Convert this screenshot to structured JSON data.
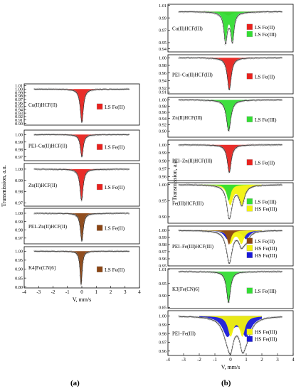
{
  "figure": {
    "caption_a": "(a)",
    "caption_b": "(b)",
    "colors": {
      "ls_fe2": "#e8221e",
      "ls_fe2_dark": "#8b4513",
      "ls_fe3": "#33dd33",
      "hs_fe3": "#f2f20c",
      "hs_fe3_blue": "#1a1ad8",
      "spectrum_points": "#8c8c8c"
    }
  },
  "chart_data": [
    {
      "panel": "(a)",
      "type": "scatter",
      "xlabel": "V, mm/s",
      "ylabel": "Transmission, a.u.",
      "xlim": [
        -4,
        4
      ],
      "x_ticks": [
        "-4",
        "-3",
        "-2",
        "-1",
        "0",
        "1",
        "2",
        "3",
        "4"
      ],
      "grid": false,
      "subplots": [
        {
          "sample": "Cu(II)HCF(II)",
          "ylim": [
            0.895,
            1.015
          ],
          "yticks": [
            "1.01",
            "1.00",
            "0.99",
            "0.98",
            "0.97",
            "0.96",
            "0.95",
            "0.94",
            "0.93",
            "0.92",
            "0.91",
            "0.90"
          ],
          "legend": [
            {
              "label": "LS Fe(II)",
              "color": "#e8221e"
            }
          ],
          "components": [
            {
              "type": "singlet",
              "center": 0.0,
              "width": 0.26,
              "depth": 0.098,
              "color": "#e8221e"
            }
          ]
        },
        {
          "sample": "PEI–Cu(II)HCF(II)",
          "ylim": [
            0.965,
            1.006
          ],
          "yticks": [
            "1.00",
            "0.99",
            "0.98",
            "0.97"
          ],
          "legend": [
            {
              "label": "LS Fe(II)",
              "color": "#e8221e"
            }
          ],
          "components": [
            {
              "type": "singlet",
              "center": 0.0,
              "width": 0.24,
              "depth": 0.03,
              "color": "#e8221e"
            }
          ]
        },
        {
          "sample": "Zn(II)HCF(II)",
          "ylim": [
            0.967,
            1.005
          ],
          "yticks": [
            "1.00",
            "0.99",
            "0.98",
            "0.97"
          ],
          "legend": [
            {
              "label": "LS Fe(II)",
              "color": "#e8221e"
            }
          ],
          "components": [
            {
              "type": "singlet",
              "center": -0.02,
              "width": 0.26,
              "depth": 0.028,
              "color": "#e8221e"
            }
          ]
        },
        {
          "sample": "PEI–Zn(II)HCF(II)",
          "ylim": [
            0.963,
            1.006
          ],
          "yticks": [
            "1.00",
            "0.99",
            "0.98",
            "0.97"
          ],
          "legend": [
            {
              "label": "LS Fe(II)",
              "color": "#8b4513"
            }
          ],
          "components": [
            {
              "type": "singlet",
              "center": 0.0,
              "width": 0.24,
              "depth": 0.034,
              "color": "#8b4513"
            }
          ]
        },
        {
          "sample": "K4[Fe(CN)6]",
          "ylim": [
            0.795,
            1.025
          ],
          "yticks": [
            "1.00",
            "0.95",
            "0.90",
            "0.85",
            "0.80"
          ],
          "legend": [
            {
              "label": "LS Fe(II)",
              "color": "#8b4513"
            }
          ],
          "components": [
            {
              "type": "singlet",
              "center": -0.05,
              "width": 0.18,
              "depth": 0.19,
              "color": "#8b4513"
            }
          ]
        }
      ]
    },
    {
      "panel": "(b)",
      "type": "scatter",
      "xlabel": "V, mm/s",
      "ylabel": "Transmission, a.u.",
      "xlim": [
        -4,
        4
      ],
      "x_ticks": [
        "-4",
        "-3",
        "-2",
        "-1",
        "0",
        "1",
        "2",
        "3",
        "4"
      ],
      "grid": false,
      "subplots": [
        {
          "sample": "Cu(II)HCF(III)",
          "ylim": [
            0.935,
            1.012
          ],
          "yticks": [
            "1.01",
            "0.99",
            "0.97",
            "0.95",
            "0.94"
          ],
          "legend": [
            {
              "label": "LS Fe(II)",
              "color": "#e8221e"
            },
            {
              "label": "LS Fe(III)",
              "color": "#33dd33"
            }
          ],
          "components": [
            {
              "type": "singlet",
              "center": -0.15,
              "width": 0.6,
              "depth": 0.006,
              "color": "#e8221e"
            },
            {
              "type": "doublet",
              "center": -0.1,
              "split": 0.44,
              "width": 0.24,
              "depth": 0.045,
              "color": "#33dd33"
            }
          ]
        },
        {
          "sample": "PEI–Cu(II)HCF(III)",
          "ylim": [
            0.905,
            1.008
          ],
          "yticks": [
            "1.00",
            "0.98",
            "0.96",
            "0.94",
            "0.92",
            "0.91"
          ],
          "legend": [
            {
              "label": "LS Fe(II)",
              "color": "#e8221e"
            }
          ],
          "components": [
            {
              "type": "singlet",
              "center": -0.08,
              "width": 0.3,
              "depth": 0.085,
              "color": "#e8221e"
            }
          ]
        },
        {
          "sample": "Zn(II)HCF(III)",
          "ylim": [
            0.88,
            1.008
          ],
          "yticks": [
            "1.00",
            "0.98",
            "0.96",
            "0.94",
            "0.92",
            "0.90"
          ],
          "legend": [
            {
              "label": "LS Fe(III)",
              "color": "#33dd33"
            }
          ],
          "components": [
            {
              "type": "singlet",
              "center": -0.12,
              "width": 0.34,
              "depth": 0.1,
              "color": "#33dd33"
            }
          ]
        },
        {
          "sample": "PEI–Zn(II)HCF(III)",
          "ylim": [
            0.955,
            1.006
          ],
          "yticks": [
            "1.00",
            "0.99",
            "0.98",
            "0.97",
            "0.96"
          ],
          "legend": [
            {
              "label": "LS Fe(II)",
              "color": "#e8221e"
            }
          ],
          "components": [
            {
              "type": "singlet",
              "center": -0.08,
              "width": 0.3,
              "depth": 0.035,
              "color": "#e8221e"
            }
          ]
        },
        {
          "sample": "Fe(III)HCF(III)",
          "ylim": [
            0.88,
            1.006
          ],
          "yticks": [
            "1.00",
            "0.95",
            "0.90"
          ],
          "legend": [
            {
              "label": "LS Fe(III)",
              "color": "#33dd33"
            },
            {
              "label": "HS Fe(III)",
              "color": "#f2f20c"
            }
          ],
          "components": [
            {
              "type": "doublet",
              "center": 0.35,
              "split": 0.75,
              "width": 0.42,
              "depth": 0.06,
              "color": "#f2f20c"
            },
            {
              "type": "singlet",
              "center": -0.12,
              "width": 0.32,
              "depth": 0.05,
              "color": "#33dd33"
            }
          ]
        },
        {
          "sample": "PEI–Fe(III)HCF(III)",
          "ylim": [
            0.95,
            1.006
          ],
          "yticks": [
            "1.00",
            "0.99",
            "0.98",
            "0.97",
            "0.96",
            "0.95"
          ],
          "legend": [
            {
              "label": "LS Fe(II)",
              "color": "#8b4513"
            },
            {
              "label": "HS Fe(III)",
              "color": "#f2f20c"
            },
            {
              "label": "HS Fe(III)",
              "color": "#1a1ad8"
            }
          ],
          "components": [
            {
              "type": "doublet",
              "center": 0.4,
              "split": 1.2,
              "width": 0.5,
              "depth": 0.012,
              "color": "#1a1ad8"
            },
            {
              "type": "doublet",
              "center": 0.35,
              "split": 0.7,
              "width": 0.4,
              "depth": 0.018,
              "color": "#f2f20c"
            },
            {
              "type": "singlet",
              "center": -0.1,
              "width": 0.3,
              "depth": 0.02,
              "color": "#8b4513"
            }
          ]
        },
        {
          "sample": "K3[Fe(CN)6]",
          "ylim": [
            0.845,
            1.012
          ],
          "yticks": [
            "1.01",
            "0.95",
            "0.90",
            "0.85"
          ],
          "legend": [
            {
              "label": "LS Fe(III)",
              "color": "#33dd33"
            }
          ],
          "components": [
            {
              "type": "singlet",
              "center": -0.13,
              "width": 0.3,
              "depth": 0.13,
              "color": "#33dd33"
            }
          ]
        },
        {
          "sample": "PEI–Fe(III)",
          "ylim": [
            0.955,
            1.006
          ],
          "yticks": [
            "1.00",
            "0.99",
            "0.98",
            "0.97",
            "0.96"
          ],
          "legend": [
            {
              "label": "HS Fe(III)",
              "color": "#f2f20c"
            },
            {
              "label": "HS Fe(III)",
              "color": "#1a1ad8"
            }
          ],
          "components": [
            {
              "type": "doublet",
              "center": 0.4,
              "split": 1.2,
              "width": 0.75,
              "depth": 0.022,
              "color": "#1a1ad8"
            },
            {
              "type": "doublet",
              "center": 0.38,
              "split": 0.75,
              "width": 0.42,
              "depth": 0.022,
              "color": "#f2f20c"
            }
          ]
        }
      ]
    }
  ]
}
